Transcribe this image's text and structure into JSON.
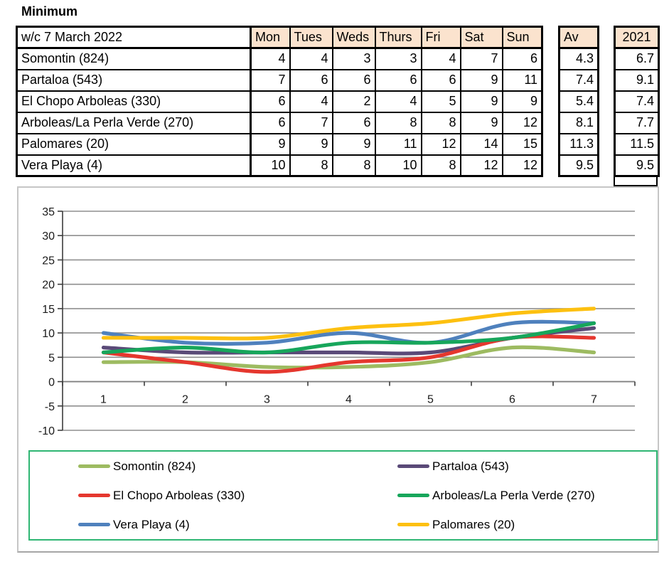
{
  "title": "Minimum",
  "colors": {
    "header_fill": "#FBE3CE",
    "table_border": "#000000",
    "gridline": "#8f8f8f",
    "axis": "#3c3c3c",
    "chart_border": "#c6c6c6",
    "legend_border": "#2FB673"
  },
  "table": {
    "header": {
      "label": "w/c 7 March 2022",
      "days": [
        "Mon",
        "Tues",
        "Weds",
        "Thurs",
        "Fri",
        "Sat",
        "Sun"
      ],
      "av": "Av",
      "year": "2021"
    },
    "rows": [
      {
        "label": "Somontin (824)",
        "values": [
          4,
          4,
          3,
          3,
          4,
          7,
          6
        ],
        "av": "4.3",
        "year2021": "6.7"
      },
      {
        "label": "Partaloa (543)",
        "values": [
          7,
          6,
          6,
          6,
          6,
          9,
          11
        ],
        "av": "7.4",
        "year2021": "9.1"
      },
      {
        "label": "El Chopo Arboleas (330)",
        "values": [
          6,
          4,
          2,
          4,
          5,
          9,
          9
        ],
        "av": "5.4",
        "year2021": "7.4"
      },
      {
        "label": "Arboleas/La Perla Verde (270)",
        "values": [
          6,
          7,
          6,
          8,
          8,
          9,
          12
        ],
        "av": "8.1",
        "year2021": "7.7"
      },
      {
        "label": "Palomares (20)",
        "values": [
          9,
          9,
          9,
          11,
          12,
          14,
          15
        ],
        "av": "11.3",
        "year2021": "11.5"
      },
      {
        "label": "Vera Playa (4)",
        "values": [
          10,
          8,
          8,
          10,
          8,
          12,
          12
        ],
        "av": "9.5",
        "year2021": "9.5"
      }
    ]
  },
  "chart_data": {
    "type": "line",
    "title": "",
    "xlabel": "",
    "ylabel": "",
    "x": [
      1,
      2,
      3,
      4,
      5,
      6,
      7
    ],
    "xticks": [
      "1",
      "2",
      "3",
      "4",
      "5",
      "6",
      "7"
    ],
    "yticks": [
      35,
      30,
      25,
      20,
      15,
      10,
      5,
      0,
      -5,
      -10
    ],
    "ylim": [
      -10,
      35
    ],
    "ytick_step": 5,
    "grid": true,
    "smooth": true,
    "legend_position": "bottom",
    "series": [
      {
        "name": "Somontin (824)",
        "color": "#9DBB61",
        "values": [
          4,
          4,
          3,
          3,
          4,
          7,
          6
        ]
      },
      {
        "name": "Partaloa (543)",
        "color": "#5A4A78",
        "values": [
          7,
          6,
          6,
          6,
          6,
          9,
          11
        ]
      },
      {
        "name": "El Chopo Arboleas (330)",
        "color": "#E5372E",
        "values": [
          6,
          4,
          2,
          4,
          5,
          9,
          9
        ]
      },
      {
        "name": "Arboleas/La Perla Verde (270)",
        "color": "#17A65B",
        "values": [
          6,
          7,
          6,
          8,
          8,
          9,
          12
        ]
      },
      {
        "name": "Vera Playa (4)",
        "color": "#4F81BD",
        "values": [
          10,
          8,
          8,
          10,
          8,
          12,
          12
        ]
      },
      {
        "name": "Palomares (20)",
        "color": "#FDC010",
        "values": [
          9,
          9,
          9,
          11,
          12,
          14,
          15
        ]
      }
    ],
    "plot_order": [
      0,
      1,
      2,
      4,
      3,
      5
    ]
  }
}
